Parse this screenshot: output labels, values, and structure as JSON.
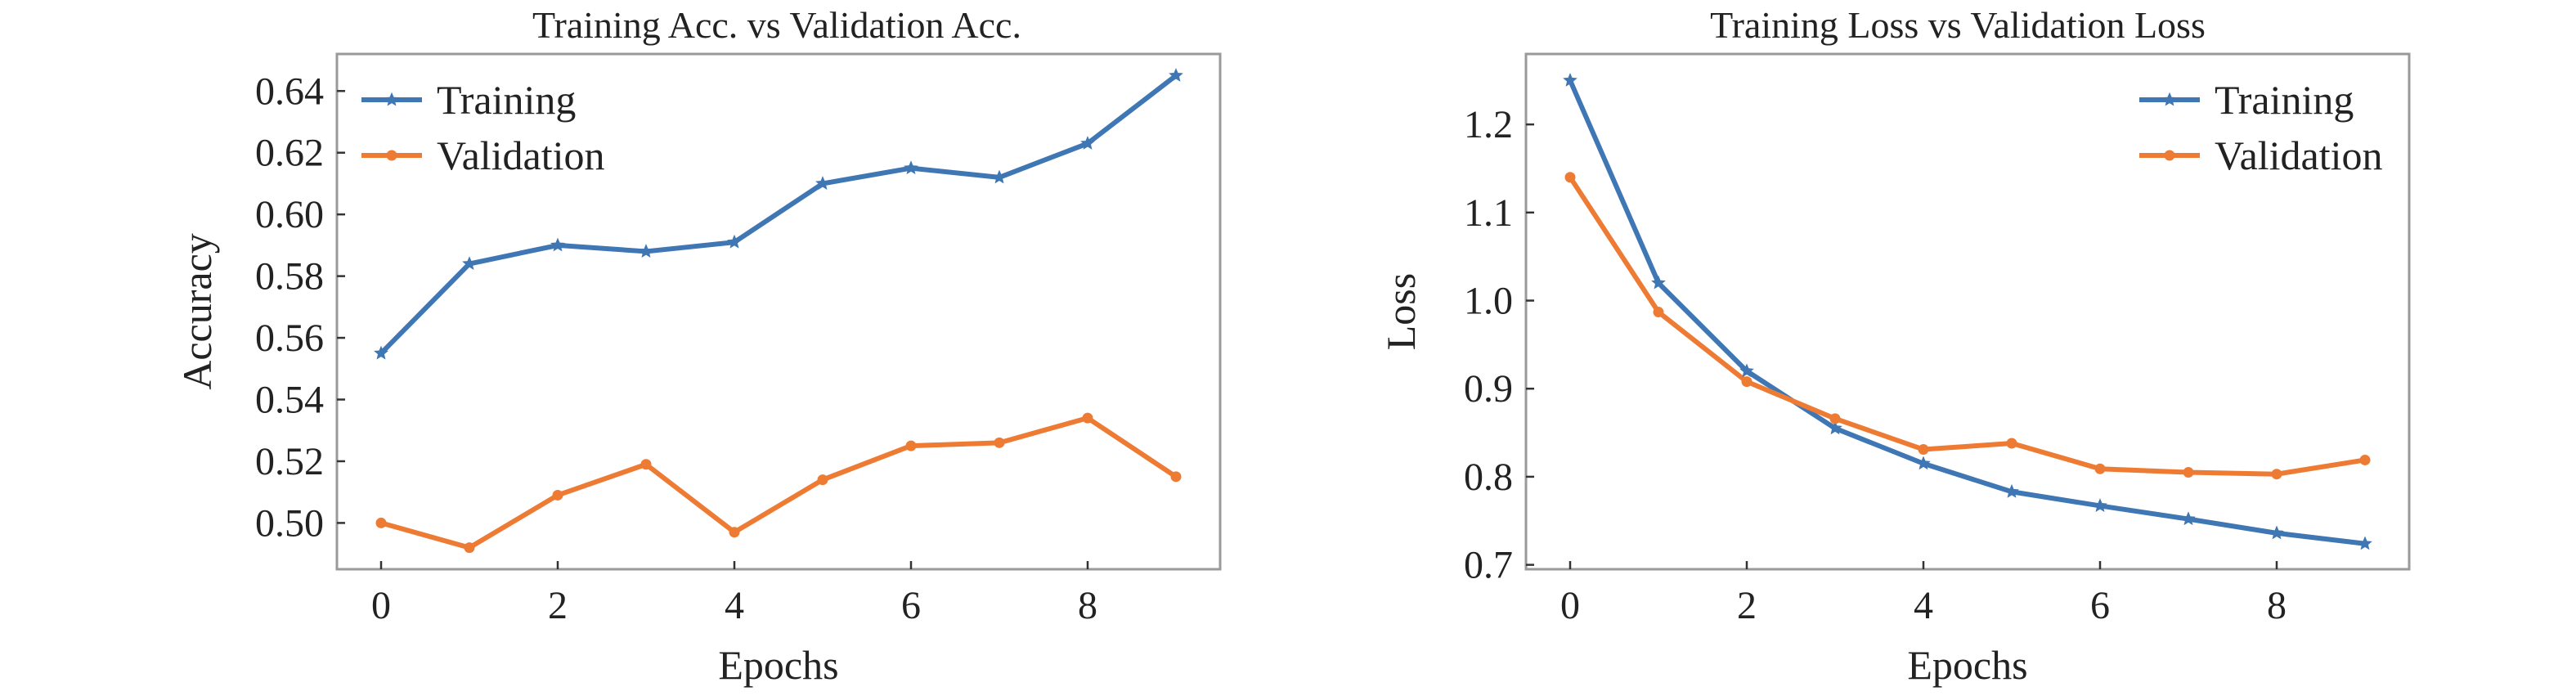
{
  "chart_data": [
    {
      "type": "line",
      "title": "Training Acc. vs Validation Acc.",
      "xlabel": "Epochs",
      "ylabel": "Accuracy",
      "xlim": [
        -0.5,
        9.5
      ],
      "ylim": [
        0.485,
        0.652
      ],
      "xticks": [
        0,
        2,
        4,
        6,
        8
      ],
      "xtick_labels": [
        "0",
        "2",
        "4",
        "6",
        "8"
      ],
      "yticks": [
        0.5,
        0.52,
        0.54,
        0.56,
        0.58,
        0.6,
        0.62,
        0.64
      ],
      "ytick_labels": [
        "0.50",
        "0.52",
        "0.54",
        "0.56",
        "0.58",
        "0.60",
        "0.62",
        "0.64"
      ],
      "grid": false,
      "legend_position": "top-left",
      "x": [
        0,
        1,
        2,
        3,
        4,
        5,
        6,
        7,
        8,
        9
      ],
      "series": [
        {
          "name": "Training",
          "color": "#3f76b4",
          "marker": "star",
          "values": [
            0.555,
            0.584,
            0.59,
            0.588,
            0.591,
            0.61,
            0.615,
            0.612,
            0.623,
            0.645
          ]
        },
        {
          "name": "Validation",
          "color": "#ee7b33",
          "marker": "circle",
          "values": [
            0.5,
            0.492,
            0.509,
            0.519,
            0.497,
            0.514,
            0.525,
            0.526,
            0.534,
            0.515
          ]
        }
      ]
    },
    {
      "type": "line",
      "title": "Training Loss vs Validation Loss",
      "xlabel": "Epochs",
      "ylabel": "Loss",
      "xlim": [
        -0.5,
        9.5
      ],
      "ylim": [
        0.695,
        1.28
      ],
      "xticks": [
        0,
        2,
        4,
        6,
        8
      ],
      "xtick_labels": [
        "0",
        "2",
        "4",
        "6",
        "8"
      ],
      "yticks": [
        0.7,
        0.8,
        0.9,
        1.0,
        1.1,
        1.2
      ],
      "ytick_labels": [
        "0.7",
        "0.8",
        "0.9",
        "1.0",
        "1.1",
        "1.2"
      ],
      "grid": false,
      "legend_position": "top-right",
      "x": [
        0,
        1,
        2,
        3,
        4,
        5,
        6,
        7,
        8,
        9
      ],
      "series": [
        {
          "name": "Training",
          "color": "#3f76b4",
          "marker": "star",
          "values": [
            1.25,
            1.02,
            0.92,
            0.855,
            0.815,
            0.783,
            0.767,
            0.752,
            0.736,
            0.724
          ]
        },
        {
          "name": "Validation",
          "color": "#ee7b33",
          "marker": "circle",
          "values": [
            1.14,
            0.987,
            0.908,
            0.866,
            0.831,
            0.838,
            0.809,
            0.805,
            0.803,
            0.819
          ]
        }
      ]
    }
  ]
}
